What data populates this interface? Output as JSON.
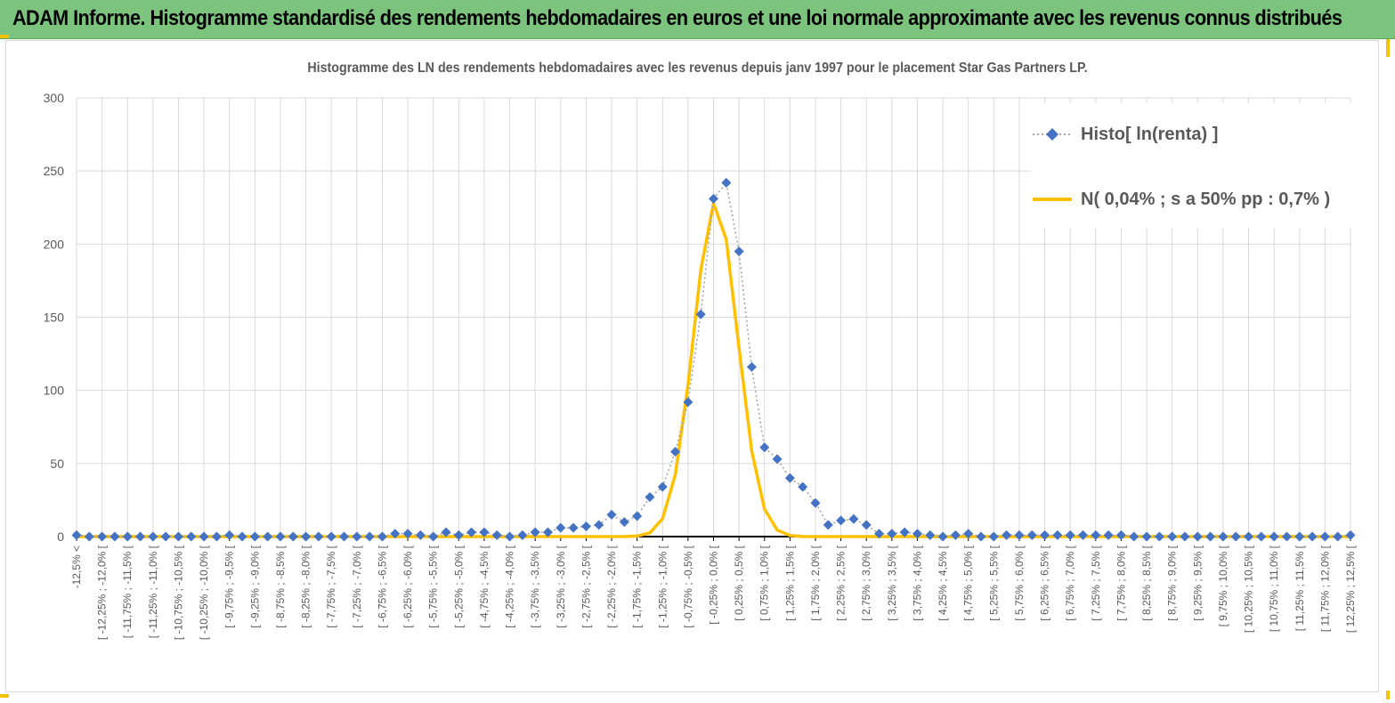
{
  "header": {
    "title": "ADAM Informe. Histogramme standardisé des rendements hebdomadaires en euros et une loi normale approximante avec les revenus connus distribués",
    "background": "#7cc47e",
    "accent": "#f5c200"
  },
  "chart_data": {
    "type": "line",
    "title": "Histogramme des LN des rendements  hebdomadaires avec les revenus depuis janv 1997 pour le placement Star Gas Partners LP.",
    "xlabel": "",
    "ylabel": "",
    "ylim": [
      0,
      300
    ],
    "yticks": [
      0,
      50,
      100,
      150,
      200,
      250,
      300
    ],
    "grid": true,
    "legend_position": "top-right",
    "categories": [
      "-12,5% <",
      "[ -12,25% ; -12,0% [",
      "[ -11,75% ; -11,5% [",
      "[ -11,25% ; -11,0% [",
      "[ -10,75% ; -10,5% [",
      "[ -10,25% ; -10,0% [",
      "[ -9,75% ; -9,5% [",
      "[ -9,25% ; -9,0% [",
      "[ -8,75% ; -8,5% [",
      "[ -8,25% ; -8,0% [",
      "[ -7,75% ; -7,5% [",
      "[ -7,25% ; -7,0% [",
      "[ -6,75% ; -6,5% [",
      "[ -6,25% ; -6,0% [",
      "[ -5,75% ; -5,5% [",
      "[ -5,25% ; -5,0% [",
      "[ -4,75% ; -4,5% [",
      "[ -4,25% ; -4,0% [",
      "[ -3,75% ; -3,5% [",
      "[ -3,25% ; -3,0% [",
      "[ -2,75% ; -2,5% [",
      "[ -2,25% ; -2,0% [",
      "[ -1,75% ; -1,5% [",
      "[ -1,25% ; -1,0% [",
      "[ -0,75% ; -0,5% [",
      "[ -0,25% ; 0,0% [",
      "[ 0,25% ; 0,5% [",
      "[ 0,75% ; 1,0% [",
      "[ 1,25% ; 1,5% [",
      "[ 1,75% ; 2,0% [",
      "[ 2,25% ; 2,5% [",
      "[ 2,75% ; 3,0% [",
      "[ 3,25% ; 3,5% [",
      "[ 3,75% ; 4,0% [",
      "[ 4,25% ; 4,5% [",
      "[ 4,75% ; 5,0% [",
      "[ 5,25% ; 5,5% [",
      "[ 5,75% ; 6,0% [",
      "[ 6,25% ; 6,5% [",
      "[ 6,75% ; 7,0% [",
      "[ 7,25% ; 7,5% [",
      "[ 7,75% ; 8,0% [",
      "[ 8,25% ; 8,5% [",
      "[ 8,75% ; 9,0% [",
      "[ 9,25% ; 9,5% [",
      "[ 9,75% ; 10,0% [",
      "[ 10,25% ; 10,5% [",
      "[ 10,75% ; 11,0% [",
      "[ 11,25% ; 11,5% [",
      "[ 11,75% ; 12,0% [",
      "[ 12,25% ; 12,5% ["
    ],
    "series": [
      {
        "name": "Histo[ ln(renta) ]",
        "style": "dotted-diamond",
        "color": "#4472c4",
        "x": [
          -12.5,
          -12.25,
          -12,
          -11.75,
          -11.5,
          -11.25,
          -11,
          -10.75,
          -10.5,
          -10.25,
          -10,
          -9.75,
          -9.5,
          -9.25,
          -9,
          -8.75,
          -8.5,
          -8.25,
          -8,
          -7.75,
          -7.5,
          -7.25,
          -7,
          -6.75,
          -6.5,
          -6.25,
          -6,
          -5.75,
          -5.5,
          -5.25,
          -5,
          -4.75,
          -4.5,
          -4.25,
          -4,
          -3.75,
          -3.5,
          -3.25,
          -3,
          -2.75,
          -2.5,
          -2.25,
          -2,
          -1.75,
          -1.5,
          -1.25,
          -1,
          -0.75,
          -0.5,
          -0.25,
          0,
          0.25,
          0.5,
          0.75,
          1,
          1.25,
          1.5,
          1.75,
          2,
          2.25,
          2.5,
          2.75,
          3,
          3.25,
          3.5,
          3.75,
          4,
          4.25,
          4.5,
          4.75,
          5,
          5.25,
          5.5,
          5.75,
          6,
          6.25,
          6.5,
          6.75,
          7,
          7.25,
          7.5,
          7.75,
          8,
          8.25,
          8.5,
          8.75,
          9,
          9.25,
          9.5,
          9.75,
          10,
          10.25,
          10.5,
          10.75,
          11,
          11.25,
          11.5,
          11.75,
          12,
          12.25,
          12.5
        ],
        "values": [
          1,
          0,
          0,
          0,
          0,
          0,
          0,
          0,
          0,
          0,
          0,
          0,
          1,
          0,
          0,
          0,
          0,
          0,
          0,
          0,
          0,
          0,
          0,
          0,
          0,
          2,
          2,
          1,
          0,
          3,
          1,
          3,
          3,
          1,
          0,
          1,
          3,
          3,
          6,
          6,
          7,
          8,
          15,
          10,
          14,
          27,
          34,
          58,
          92,
          152,
          231,
          242,
          195,
          116,
          61,
          53,
          40,
          34,
          23,
          8,
          11,
          12,
          8,
          2,
          2,
          3,
          2,
          1,
          0,
          1,
          2,
          0,
          0,
          1,
          1,
          1,
          1,
          1,
          1,
          1,
          1,
          1,
          1,
          0,
          0,
          0,
          0,
          0,
          0,
          0,
          0,
          0,
          0,
          0,
          0,
          0,
          0,
          0,
          0,
          0,
          1
        ]
      },
      {
        "name": "N( 0,04% ; s a 50% pp : 0,7% )",
        "style": "solid",
        "color": "#ffc000",
        "mean": 0.04,
        "sd": 0.43,
        "peak": 229,
        "xrange": [
          -12.5,
          12.5
        ]
      }
    ]
  }
}
